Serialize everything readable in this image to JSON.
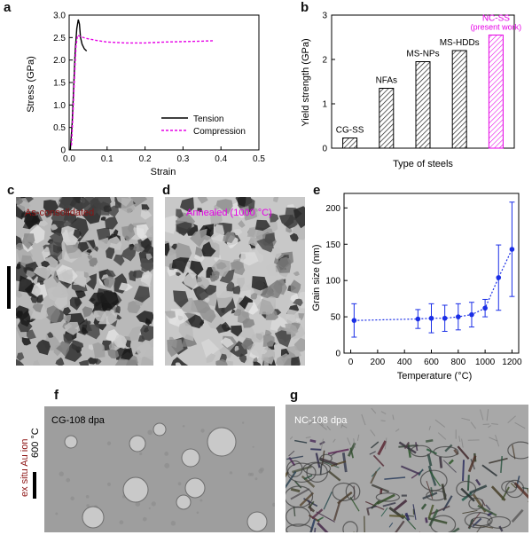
{
  "figure": {
    "panel_labels": [
      "a",
      "b",
      "c",
      "d",
      "e",
      "f",
      "g"
    ],
    "labels": {
      "c": "As-consolidated",
      "d": "Annealed (1000 °C)",
      "f": "CG-108 dpa",
      "g": "NC-108 dpa",
      "f_side_1": "ex situ Au ion",
      "f_side_2": "600 °C"
    },
    "colors": {
      "red_label": "#8b1010",
      "magenta": "#e600e6",
      "blue": "#1a2ee6"
    }
  },
  "chart_data": [
    {
      "panel": "a",
      "type": "line",
      "xlabel": "Strain",
      "ylabel": "Stress (GPa)",
      "xlim": [
        0,
        0.5
      ],
      "ylim": [
        0,
        3.0
      ],
      "xticks": [
        0,
        0.1,
        0.2,
        0.3,
        0.4,
        0.5
      ],
      "yticks": [
        0,
        0.5,
        1.0,
        1.5,
        2.0,
        2.5,
        3.0
      ],
      "xticklabels": [
        "0.0",
        "0.1",
        "0.2",
        "0.3",
        "0.4",
        "0.5"
      ],
      "yticklabels": [
        "0",
        "0.5",
        "1.0",
        "1.5",
        "2.0",
        "2.5",
        "3.0"
      ],
      "legend_position": "bottom-right",
      "series": [
        {
          "name": "Tension",
          "style": "solid",
          "color": "#000000",
          "x": [
            0.003,
            0.008,
            0.012,
            0.016,
            0.02,
            0.024,
            0.027,
            0.03,
            0.034,
            0.04,
            0.046
          ],
          "y": [
            0.0,
            0.6,
            1.4,
            2.2,
            2.7,
            2.9,
            2.8,
            2.5,
            2.35,
            2.25,
            2.2
          ]
        },
        {
          "name": "Compression",
          "style": "dashed",
          "color": "#e600e6",
          "x": [
            0.006,
            0.01,
            0.014,
            0.018,
            0.022,
            0.03,
            0.045,
            0.07,
            0.1,
            0.15,
            0.2,
            0.25,
            0.3,
            0.35,
            0.38
          ],
          "y": [
            0.1,
            0.8,
            1.6,
            2.3,
            2.55,
            2.52,
            2.48,
            2.44,
            2.4,
            2.38,
            2.38,
            2.4,
            2.41,
            2.42,
            2.43
          ]
        }
      ]
    },
    {
      "panel": "b",
      "type": "bar",
      "xlabel": "Type of steels",
      "ylabel": "Yield strength (GPa)",
      "ylim": [
        0,
        3
      ],
      "yticks": [
        0,
        1,
        2,
        3
      ],
      "categories": [
        "CG-SS",
        "NFAs",
        "MS-NPs",
        "MS-HDDs",
        "NC-SS\n(present work)"
      ],
      "values": [
        0.23,
        1.35,
        1.95,
        2.2,
        2.55
      ],
      "bar_colors": [
        "#000000",
        "#000000",
        "#000000",
        "#000000",
        "#e600e6"
      ]
    },
    {
      "panel": "e",
      "type": "scatter",
      "xlabel": "Temperature (°C)",
      "ylabel": "Grain size (nm)",
      "xlim": [
        -50,
        1250
      ],
      "ylim": [
        0,
        220
      ],
      "xticks": [
        0,
        200,
        400,
        600,
        800,
        1000,
        1200
      ],
      "yticks": [
        0,
        50,
        100,
        150,
        200
      ],
      "color": "#1a2ee6",
      "x": [
        25,
        500,
        600,
        700,
        800,
        900,
        1000,
        1100,
        1200
      ],
      "y": [
        45,
        47,
        48,
        48,
        50,
        53,
        62,
        104,
        143
      ],
      "yerr": [
        23,
        13,
        20,
        18,
        18,
        17,
        12,
        45,
        65
      ]
    }
  ]
}
